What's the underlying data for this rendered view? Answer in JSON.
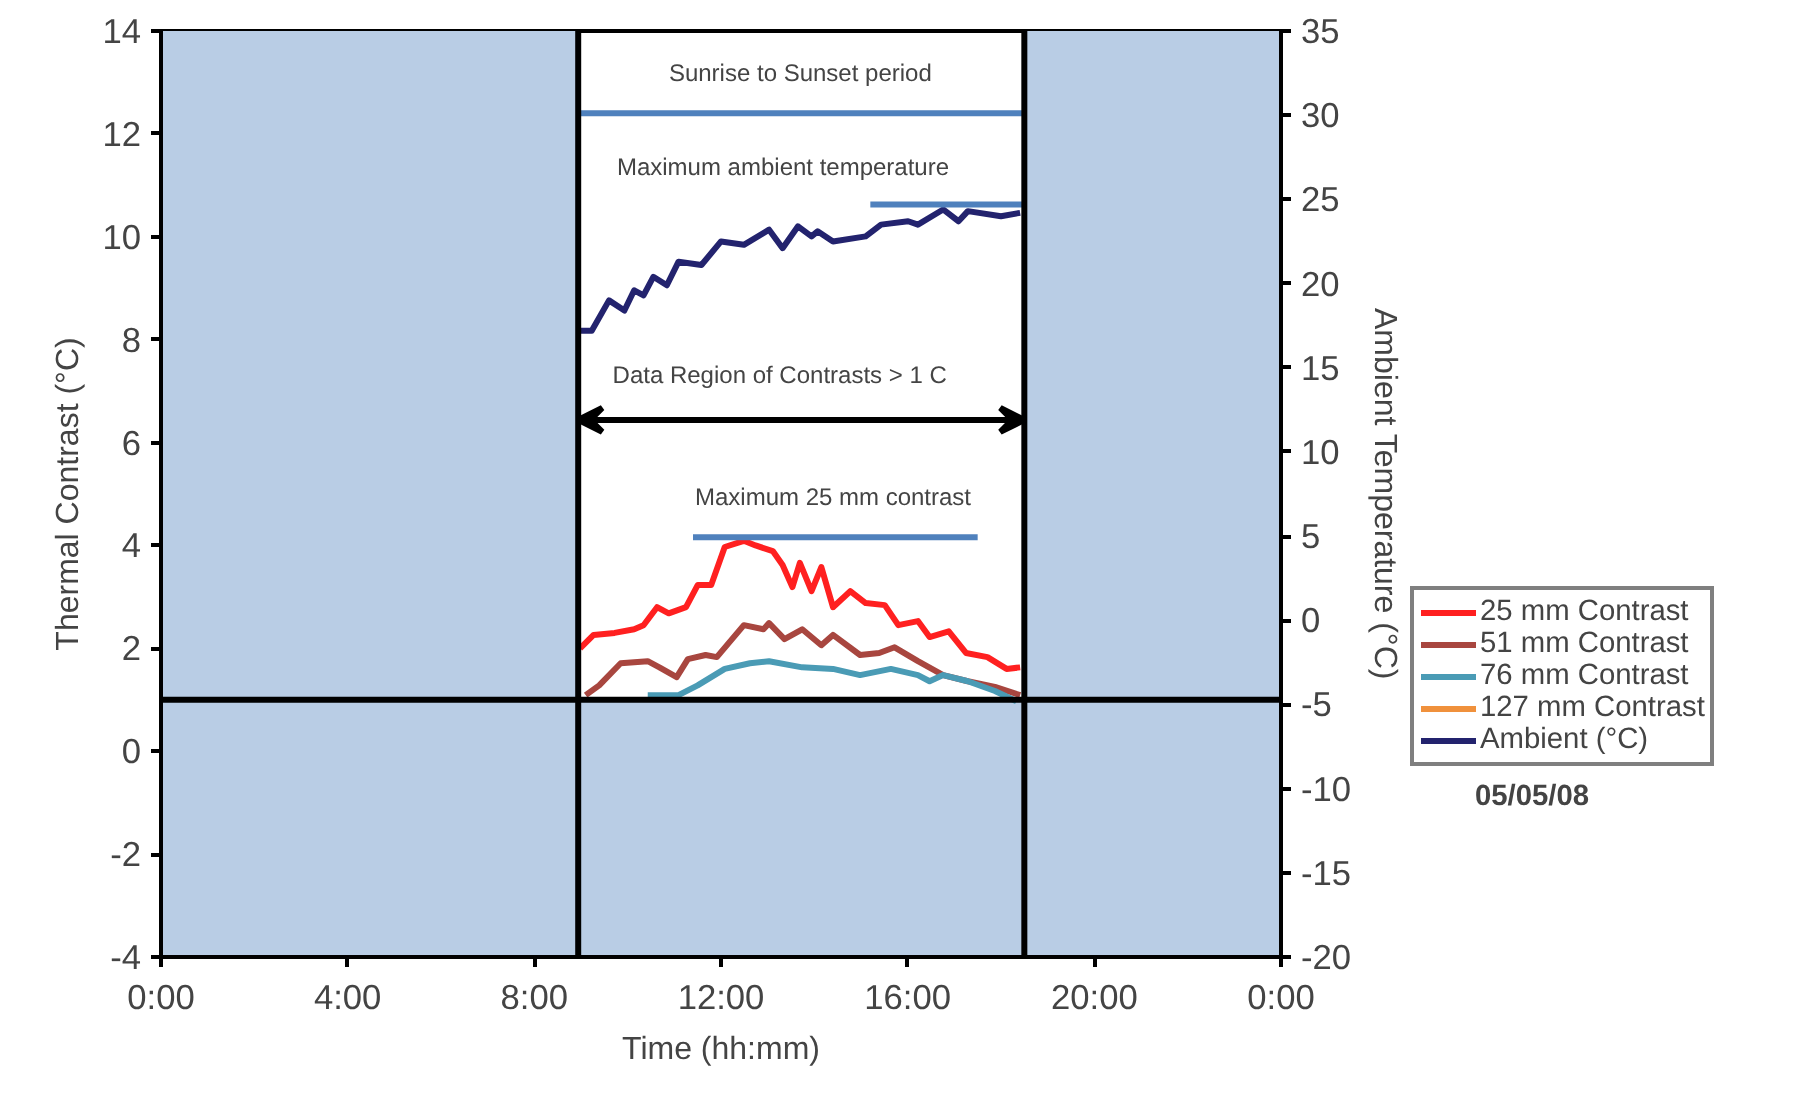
{
  "chart_data": {
    "type": "line",
    "xlabel": "Time (hh:mm)",
    "ylabel": "Thermal Contrast (°C)",
    "y2label": "Ambient Temperature (°C)",
    "xlim": [
      0,
      24
    ],
    "xticks": [
      {
        "value": 0,
        "label": "0:00"
      },
      {
        "value": 4,
        "label": "4:00"
      },
      {
        "value": 8,
        "label": "8:00"
      },
      {
        "value": 12,
        "label": "12:00"
      },
      {
        "value": 16,
        "label": "16:00"
      },
      {
        "value": 20,
        "label": "20:00"
      },
      {
        "value": 24,
        "label": "0:00"
      }
    ],
    "ylim": [
      -4,
      14
    ],
    "yticks": [
      -4,
      -2,
      0,
      2,
      4,
      6,
      8,
      10,
      12,
      14
    ],
    "y2lim": [
      -20,
      35
    ],
    "y2ticks": [
      -20,
      -15,
      -10,
      -5,
      0,
      5,
      10,
      15,
      20,
      25,
      30,
      35
    ],
    "grid": false,
    "legend": "bottom right",
    "marker": "none",
    "line_style": "solid",
    "series": [
      {
        "name": "25 mm Contrast",
        "color": "#ff2020",
        "x": [
          8.98,
          9.27,
          9.72,
          10.14,
          10.34,
          10.63,
          10.88,
          11.25,
          11.5,
          11.79,
          12.08,
          12.49,
          12.74,
          13.11,
          13.32,
          13.53,
          13.69,
          13.94,
          14.15,
          14.4,
          14.77,
          15.1,
          15.51,
          15.8,
          16.22,
          16.47,
          16.88,
          17.25,
          17.71,
          18.12,
          18.41
        ],
        "values": [
          2.0,
          2.26,
          2.3,
          2.37,
          2.45,
          2.8,
          2.68,
          2.8,
          3.23,
          3.23,
          3.97,
          4.09,
          4.0,
          3.89,
          3.62,
          3.19,
          3.66,
          3.11,
          3.58,
          2.8,
          3.11,
          2.88,
          2.84,
          2.45,
          2.53,
          2.22,
          2.33,
          1.91,
          1.83,
          1.6,
          1.63
        ]
      },
      {
        "name": "51 mm Contrast",
        "color": "#a8463f",
        "x": [
          9.1,
          9.39,
          9.85,
          10.43,
          10.68,
          11.05,
          11.29,
          11.67,
          11.91,
          12.49,
          12.91,
          13.03,
          13.36,
          13.74,
          14.15,
          14.4,
          14.98,
          15.39,
          15.72,
          16.22,
          16.76,
          17.29,
          17.87,
          18.41
        ],
        "values": [
          1.09,
          1.28,
          1.71,
          1.75,
          1.63,
          1.44,
          1.79,
          1.87,
          1.83,
          2.45,
          2.37,
          2.49,
          2.18,
          2.37,
          2.06,
          2.26,
          1.87,
          1.91,
          2.02,
          1.75,
          1.48,
          1.36,
          1.25,
          1.09
        ]
      },
      {
        "name": "76 mm Contrast",
        "color": "#4a9bb5",
        "x": [
          10.43,
          11.09,
          11.5,
          12.08,
          12.62,
          13.03,
          13.74,
          14.4,
          14.98,
          15.64,
          16.22,
          16.47,
          16.76,
          17.29,
          17.87,
          18.33
        ],
        "values": [
          1.09,
          1.09,
          1.28,
          1.6,
          1.71,
          1.75,
          1.63,
          1.6,
          1.48,
          1.6,
          1.48,
          1.36,
          1.48,
          1.36,
          1.17,
          0.97
        ]
      },
      {
        "name": "127 mm Contrast",
        "color": "#f0913c"
      },
      {
        "name": "Ambient (°C)",
        "color": "#23236e",
        "axis": "y2",
        "x": [
          8.9,
          9.23,
          9.6,
          9.93,
          10.14,
          10.34,
          10.55,
          10.84,
          11.09,
          11.58,
          12.0,
          12.49,
          13.03,
          13.32,
          13.65,
          13.94,
          14.07,
          14.4,
          15.1,
          15.43,
          16.01,
          16.22,
          16.76,
          17.09,
          17.29,
          18.0,
          18.41
        ],
        "values": [
          17.2,
          17.2,
          19.0,
          18.4,
          19.6,
          19.3,
          20.4,
          19.9,
          21.3,
          21.1,
          22.5,
          22.3,
          23.2,
          22.1,
          23.4,
          22.8,
          23.1,
          22.5,
          22.8,
          23.5,
          23.7,
          23.5,
          24.4,
          23.7,
          24.3,
          24.0,
          24.2
        ]
      },
      {
        "color": "#4f81bd",
        "x": [
          8.94,
          18.5
        ],
        "values": [
          12.4,
          12.4
        ]
      },
      {
        "color": "#4f81bd",
        "axis": "y2",
        "x": [
          15.2,
          18.5
        ],
        "values": [
          24.7,
          24.7
        ]
      },
      {
        "color": "#4f81bd",
        "x": [
          11.4,
          17.5
        ],
        "values": [
          4.16,
          4.16
        ]
      }
    ],
    "bands": [
      {
        "axis": "y",
        "from": -4,
        "to": 1,
        "color": "#b9cde5"
      },
      {
        "axis": "x",
        "from": 0,
        "to": 8.94,
        "color": "#b9cde5"
      },
      {
        "axis": "x",
        "from": 18.5,
        "to": 24,
        "color": "#b9cde5"
      }
    ],
    "ref_lines": [
      {
        "axis": "x",
        "value": 8.94,
        "color": "#000000"
      },
      {
        "axis": "x",
        "value": 18.5,
        "color": "#000000"
      },
      {
        "axis": "y",
        "value": 1,
        "color": "#000000"
      }
    ],
    "annotations": [
      {
        "text": "Sunrise to Sunset period",
        "x": 13.7,
        "y": 12.4
      },
      "Maximum ambient temperature",
      "Data Region of Contrasts > 1  C",
      {
        "text": "Maximum 25 mm contrast",
        "x": 14.4,
        "y": 4.16
      },
      "05/05/08"
    ]
  }
}
